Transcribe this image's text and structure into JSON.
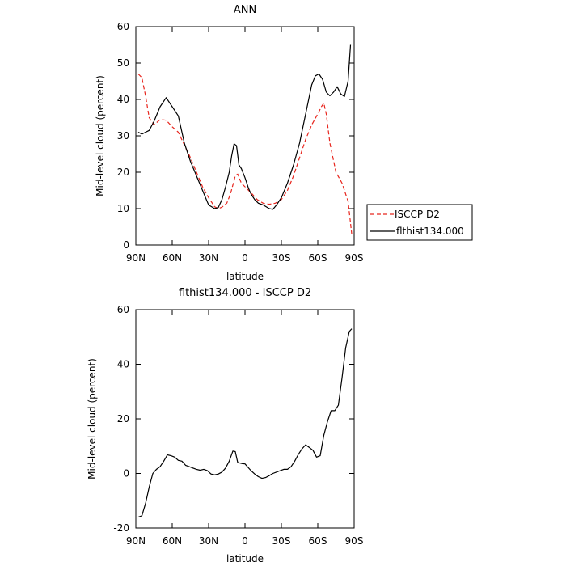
{
  "chart_data": [
    {
      "type": "line",
      "title": "ANN",
      "xlabel": "latitude",
      "ylabel": "Mid-level cloud (percent)",
      "xlim": [
        90,
        -90
      ],
      "ylim": [
        0,
        60
      ],
      "xticks": [
        {
          "v": 90,
          "label": "90N"
        },
        {
          "v": 60,
          "label": "60N"
        },
        {
          "v": 30,
          "label": "30N"
        },
        {
          "v": 0,
          "label": "0"
        },
        {
          "v": -30,
          "label": "30S"
        },
        {
          "v": -60,
          "label": "60S"
        },
        {
          "v": -90,
          "label": "90S"
        }
      ],
      "yticks": [
        0,
        10,
        20,
        30,
        40,
        50,
        60
      ],
      "legend_position": "right",
      "series": [
        {
          "name": "ISCCP D2",
          "color": "#e8261e",
          "dash": "dashed",
          "x": [
            88,
            85,
            82,
            79,
            75,
            70,
            65,
            60,
            55,
            50,
            45,
            40,
            35,
            30,
            25,
            22,
            19,
            15,
            12,
            10,
            8,
            6,
            3,
            0,
            -3,
            -6,
            -10,
            -15,
            -20,
            -25,
            -30,
            -35,
            -40,
            -45,
            -50,
            -55,
            -60,
            -63,
            -65,
            -67,
            -70,
            -75,
            -80,
            -85,
            -88
          ],
          "y": [
            47,
            46,
            41,
            35,
            33,
            34.5,
            34.3,
            32.5,
            31,
            27.5,
            24,
            20,
            16,
            13,
            10.5,
            10,
            10.4,
            11.5,
            14,
            16.5,
            19,
            19.5,
            17,
            16,
            15,
            14,
            12.5,
            11.5,
            11.2,
            11.5,
            12.5,
            15,
            19,
            24,
            29,
            33,
            36,
            38,
            39,
            36,
            28,
            20,
            17,
            12,
            3
          ]
        },
        {
          "name": "flthist134.000",
          "color": "#000000",
          "dash": "solid",
          "x": [
            88,
            85,
            82,
            79,
            75,
            70,
            65,
            60,
            55,
            50,
            45,
            40,
            35,
            30,
            25,
            22,
            19,
            16,
            13,
            11,
            9,
            7,
            5,
            3,
            0,
            -3,
            -5,
            -8,
            -11,
            -15,
            -20,
            -23,
            -26,
            -30,
            -35,
            -40,
            -45,
            -50,
            -55,
            -58,
            -61,
            -64,
            -67,
            -70,
            -73,
            -76,
            -79,
            -82,
            -85,
            -87
          ],
          "y": [
            31,
            30.5,
            31,
            31.5,
            34,
            38,
            40.5,
            38,
            35.5,
            28,
            23,
            19,
            15,
            11,
            10,
            10.3,
            12.5,
            16,
            20,
            24.5,
            27.8,
            27.3,
            22,
            21,
            18.5,
            15.5,
            14,
            12.5,
            11.5,
            11,
            10,
            9.8,
            11,
            13,
            17,
            22,
            28,
            36,
            44,
            46.5,
            47,
            45.5,
            42,
            41,
            42,
            43.5,
            41.5,
            40.8,
            45,
            55
          ]
        }
      ]
    },
    {
      "type": "line",
      "title": "flthist134.000 - ISCCP D2",
      "xlabel": "latitude",
      "ylabel": "Mid-level cloud (percent)",
      "xlim": [
        90,
        -90
      ],
      "ylim": [
        -20,
        60
      ],
      "xticks": [
        {
          "v": 90,
          "label": "90N"
        },
        {
          "v": 60,
          "label": "60N"
        },
        {
          "v": 30,
          "label": "30N"
        },
        {
          "v": 0,
          "label": "0"
        },
        {
          "v": -30,
          "label": "30S"
        },
        {
          "v": -60,
          "label": "60S"
        },
        {
          "v": -90,
          "label": "90S"
        }
      ],
      "yticks": [
        -20,
        0,
        20,
        40,
        60
      ],
      "series": [
        {
          "color": "#000000",
          "dash": "solid",
          "x": [
            88,
            85,
            82,
            79,
            76,
            73,
            70,
            67,
            64,
            61,
            58,
            55,
            52,
            49,
            46,
            43,
            40,
            37,
            34,
            31,
            28,
            25,
            22,
            19,
            16,
            13,
            10,
            8,
            6,
            4,
            2,
            0,
            -2,
            -5,
            -8,
            -11,
            -14,
            -17,
            -20,
            -23,
            -26,
            -29,
            -32,
            -35,
            -38,
            -41,
            -44,
            -47,
            -50,
            -53,
            -56,
            -59,
            -62,
            -65,
            -68,
            -71,
            -74,
            -77,
            -80,
            -83,
            -86,
            -88
          ],
          "y": [
            -16,
            -15.5,
            -11,
            -5,
            0,
            1.5,
            2.5,
            4.5,
            6.8,
            6.5,
            6,
            4.8,
            4.5,
            3,
            2.5,
            2,
            1.5,
            1.2,
            1.5,
            1,
            -0.2,
            -0.5,
            -0.2,
            0.5,
            2,
            4.5,
            8.2,
            8,
            4,
            3.8,
            3.6,
            3.5,
            2.5,
            1,
            -0.2,
            -1.2,
            -1.8,
            -1.5,
            -0.8,
            0,
            0.5,
            1,
            1.5,
            1.5,
            2.5,
            4.5,
            7,
            9,
            10.5,
            9.5,
            8.5,
            6,
            6.5,
            14,
            19,
            23,
            23,
            25,
            35,
            46,
            52,
            53
          ]
        }
      ]
    }
  ]
}
